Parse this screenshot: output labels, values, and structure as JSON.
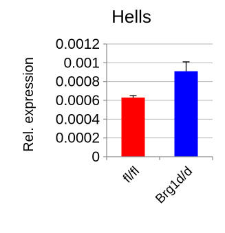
{
  "chart_data": {
    "type": "bar",
    "title": "Hells",
    "ylabel": "Rel. expression",
    "xlabel": "",
    "categories": [
      "fl/fl",
      "Brg1d/d"
    ],
    "values": [
      0.00063,
      0.00091
    ],
    "errors": [
      2e-05,
      0.0001
    ],
    "colors": [
      "#ff0000",
      "#0000ff"
    ],
    "ylim": [
      0,
      0.0012
    ],
    "yticks": [
      0,
      0.0002,
      0.0004,
      0.0006,
      0.0008,
      0.001,
      0.0012
    ],
    "ytick_labels": [
      "0",
      "0.0002",
      "0.0004",
      "0.0006",
      "0.0008",
      "0.001",
      "0.0012"
    ],
    "grid": true,
    "legend": "none"
  }
}
